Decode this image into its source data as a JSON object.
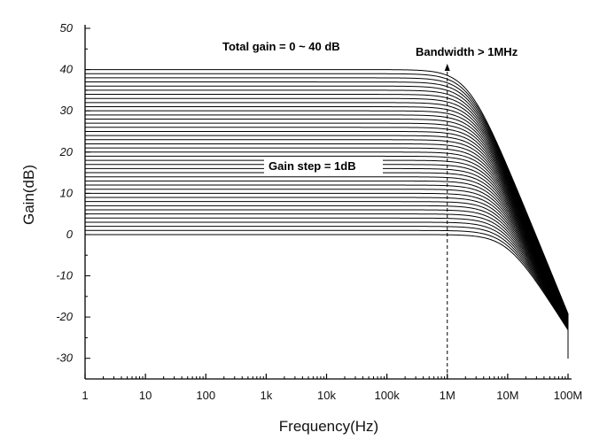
{
  "chart_data": {
    "type": "line",
    "title": "",
    "xlabel": "Frequency(Hz)",
    "ylabel": "Gain(dB)",
    "xscale": "log",
    "xlim": [
      1,
      100000000
    ],
    "ylim": [
      -35,
      50
    ],
    "x_ticks": [
      1,
      10,
      100,
      1000,
      10000,
      100000,
      1000000,
      10000000,
      100000000
    ],
    "x_tick_labels": [
      "1",
      "10",
      "100",
      "1k",
      "10k",
      "100k",
      "1M",
      "10M",
      "100M"
    ],
    "y_ticks": [
      50,
      40,
      30,
      20,
      10,
      0,
      -10,
      -20,
      -30
    ],
    "y_tick_labels": [
      "50",
      "40",
      "30",
      "20",
      "10",
      "0",
      "-10",
      "-20",
      "-30"
    ],
    "grid": false,
    "legend": "none",
    "line_color": "#000000",
    "series_gains_db": [
      0,
      1,
      2,
      3,
      4,
      5,
      6,
      7,
      8,
      9,
      10,
      11,
      12,
      13,
      14,
      15,
      16,
      17,
      18,
      19,
      20,
      21,
      22,
      23,
      24,
      25,
      26,
      27,
      28,
      29,
      30,
      31,
      32,
      33,
      34,
      35,
      36,
      37,
      38,
      39,
      40
    ],
    "bandwidth_marker_hz": 1000000,
    "annotations": {
      "total_gain": "Total gain = 0 ~ 40 dB",
      "bandwidth": "Bandwidth > 1MHz",
      "gain_step": "Gain step = 1dB"
    }
  }
}
